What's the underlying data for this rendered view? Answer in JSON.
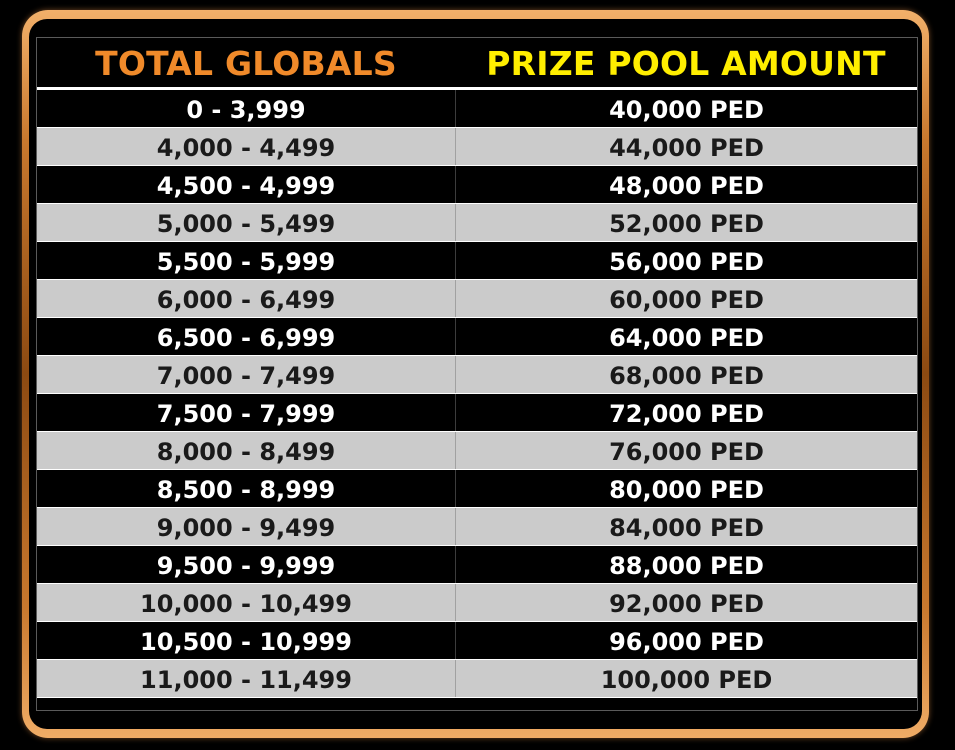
{
  "header": {
    "col1": "TOTAL GLOBALS",
    "col2": "PRIZE POOL AMOUNT",
    "col1_color": "#f08a2a",
    "col2_color": "#ffee00"
  },
  "rows": [
    {
      "globals": "0 - 3,999",
      "prize": "40,000 PED"
    },
    {
      "globals": "4,000 - 4,499",
      "prize": "44,000 PED"
    },
    {
      "globals": "4,500 - 4,999",
      "prize": "48,000 PED"
    },
    {
      "globals": "5,000 - 5,499",
      "prize": "52,000 PED"
    },
    {
      "globals": "5,500 - 5,999",
      "prize": "56,000 PED"
    },
    {
      "globals": "6,000 - 6,499",
      "prize": "60,000 PED"
    },
    {
      "globals": "6,500 - 6,999",
      "prize": "64,000 PED"
    },
    {
      "globals": "7,000 - 7,499",
      "prize": "68,000 PED"
    },
    {
      "globals": "7,500 - 7,999",
      "prize": "72,000 PED"
    },
    {
      "globals": "8,000 - 8,499",
      "prize": "76,000 PED"
    },
    {
      "globals": "8,500 - 8,999",
      "prize": "80,000 PED"
    },
    {
      "globals": "9,000 - 9,499",
      "prize": "84,000 PED"
    },
    {
      "globals": "9,500 - 9,999",
      "prize": "88,000 PED"
    },
    {
      "globals": "10,000 - 10,499",
      "prize": "92,000 PED"
    },
    {
      "globals": "10,500 - 10,999",
      "prize": "96,000 PED"
    },
    {
      "globals": "11,000 - 11,499",
      "prize": "100,000 PED"
    }
  ]
}
